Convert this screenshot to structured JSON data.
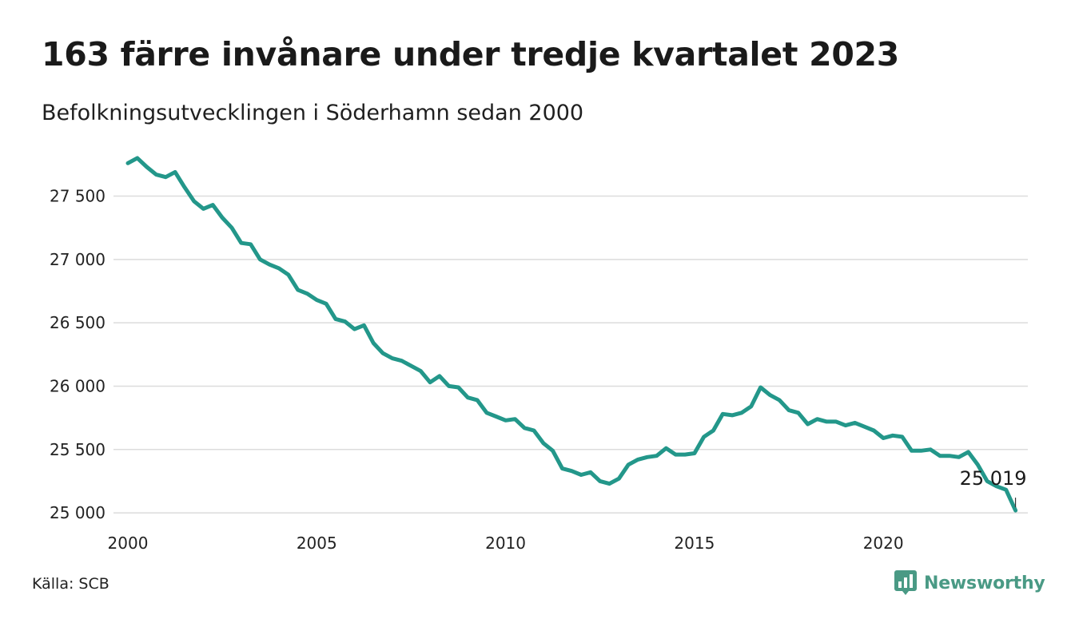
{
  "title": "163 färre invånare under tredje kvartalet 2023",
  "subtitle": "Befolkningsutvecklingen i Söderhamn sedan 2000",
  "source": "Källa: SCB",
  "brand": {
    "name": "Newsworthy",
    "icon": "bar-chart-speech-bubble-icon",
    "color": "#4a9a85"
  },
  "chart_data": {
    "type": "line",
    "line_color": "#23978a",
    "grid": true,
    "xlim": [
      2000,
      2024.25
    ],
    "ylim": [
      24950,
      27850
    ],
    "x_ticks": [
      {
        "value": 2000,
        "label": "2000"
      },
      {
        "value": 2005,
        "label": "2005"
      },
      {
        "value": 2010,
        "label": "2010"
      },
      {
        "value": 2015,
        "label": "2015"
      },
      {
        "value": 2020,
        "label": "2020"
      }
    ],
    "y_ticks": [
      {
        "value": 25000,
        "label": "25 000"
      },
      {
        "value": 25500,
        "label": "25 500"
      },
      {
        "value": 26000,
        "label": "26 000"
      },
      {
        "value": 26500,
        "label": "26 500"
      },
      {
        "value": 27000,
        "label": "27 000"
      },
      {
        "value": 27500,
        "label": "27 500"
      }
    ],
    "end_label": "25 019",
    "series": [
      {
        "start_year": 2000,
        "start_quarter": 1,
        "values": [
          27760,
          27800,
          27730,
          27670,
          27650,
          27690,
          27570,
          27460,
          27400,
          27430,
          27330,
          27250,
          27130,
          27120,
          27000,
          26960,
          26930,
          26880,
          26760,
          26730,
          26680,
          26650,
          26530,
          26510,
          26450,
          26480,
          26340,
          26260,
          26220,
          26200,
          26160,
          26120,
          26030,
          26080,
          26000,
          25990,
          25910,
          25890,
          25790,
          25760,
          25730,
          25740,
          25670,
          25650,
          25550,
          25490,
          25350,
          25330,
          25300,
          25320,
          25250,
          25230,
          25270,
          25380,
          25420,
          25440,
          25450,
          25510,
          25460,
          25460,
          25470,
          25600,
          25650,
          25780,
          25770,
          25790,
          25840,
          25990,
          25930,
          25890,
          25810,
          25790,
          25700,
          25740,
          25720,
          25720,
          25690,
          25710,
          25680,
          25650,
          25590,
          25610,
          25600,
          25490,
          25490,
          25500,
          25450,
          25450,
          25440,
          25480,
          25380,
          25250,
          25210,
          25182,
          25019
        ]
      }
    ]
  }
}
